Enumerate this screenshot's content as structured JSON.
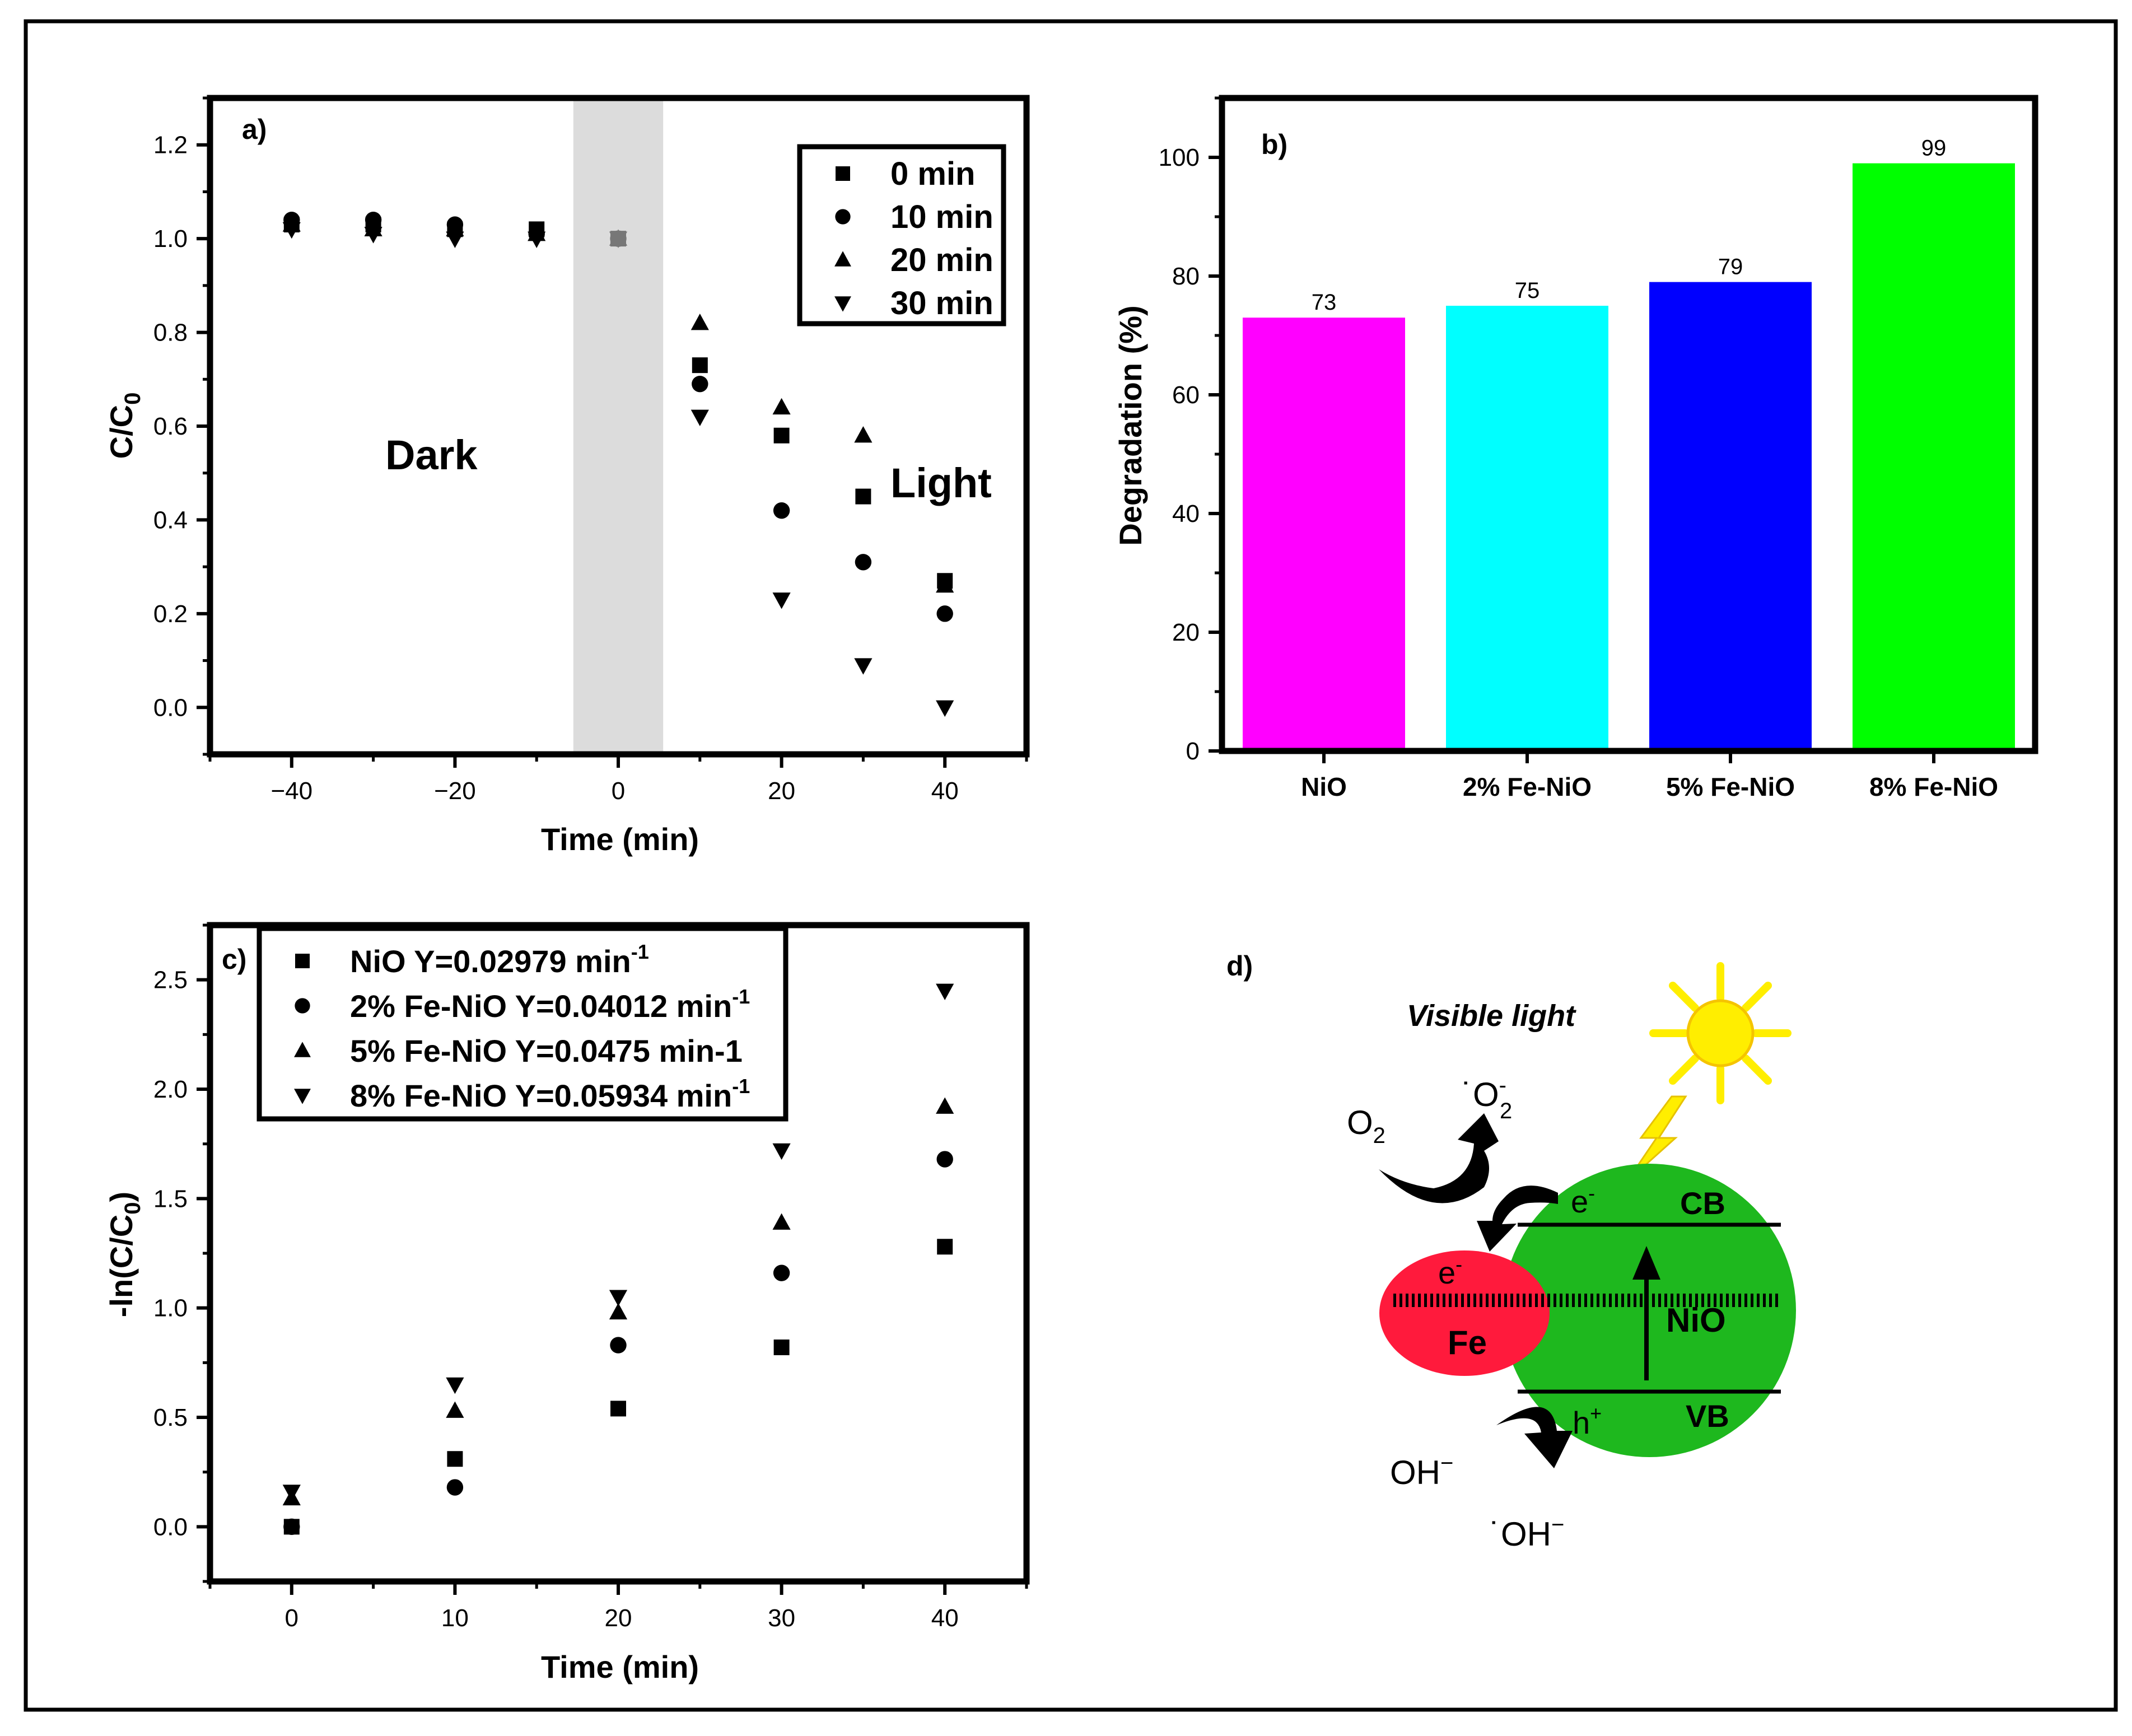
{
  "panel_a": {
    "label": "a)",
    "ylabel_main": "C/C",
    "ylabel_sub": "0",
    "xlabel": "Time (min)",
    "dark_label": "Dark",
    "light_label": "Light"
  },
  "panel_b": {
    "label": "b)",
    "ylabel": "Degradation (%)"
  },
  "panel_c": {
    "label": "c)",
    "ylabel_pre": "-ln(C/C",
    "ylabel_sub": "0",
    "ylabel_post": ")",
    "xlabel": "Time (min)",
    "legend": [
      {
        "text": "NiO Y=0.02979 min",
        "sup": "-1"
      },
      {
        "text": "2% Fe-NiO Y=0.04012 min",
        "sup": "-1"
      },
      {
        "text": "5% Fe-NiO Y=0.0475 min-1",
        "sup": ""
      },
      {
        "text": "8% Fe-NiO Y=0.05934 min",
        "sup": "-1"
      }
    ]
  },
  "panel_d": {
    "label": "d)",
    "visible_light": "Visible light",
    "o2": "O",
    "o2_sub": "2",
    "superoxide_pre": "˙O",
    "superoxide_sup": "-",
    "superoxide_sub": "2",
    "e_top": "e",
    "e_sup": "-",
    "cb": "CB",
    "e_fe": "e",
    "fe": "Fe",
    "nio": "NiO",
    "h": "h",
    "h_sup": "+",
    "vb": "VB",
    "oh": "OH",
    "oh_sup": "−",
    "oh_rad_pre": "˙OH",
    "oh_rad_sup": "−"
  },
  "colors": {
    "nio_bar": "#ff00ff",
    "fe2_bar": "#00ffff",
    "fe5_bar": "#0000ff",
    "fe8_bar": "#00ff00",
    "nio_sphere": "#1eb81e",
    "fe_sphere": "#ff1a3c",
    "sun": "#ffee00",
    "dark_band": "#dcdcdc"
  },
  "chart_data": [
    {
      "type": "scatter",
      "panel": "a",
      "xlabel": "Time (min)",
      "ylabel": "C/C0",
      "xlim": [
        -50,
        50
      ],
      "ylim": [
        -0.1,
        1.3
      ],
      "xticks": [
        -40,
        -20,
        0,
        20,
        40
      ],
      "yticks": [
        0.0,
        0.2,
        0.4,
        0.6,
        0.8,
        1.0,
        1.2
      ],
      "shaded_region": [
        -5.5,
        5.5
      ],
      "x": [
        -40,
        -30,
        -20,
        -10,
        0,
        10,
        20,
        30,
        40
      ],
      "series": [
        {
          "name": "0 min",
          "marker": "square",
          "values": [
            1.03,
            1.03,
            1.02,
            1.02,
            1.0,
            0.73,
            0.58,
            0.45,
            0.27
          ]
        },
        {
          "name": "10 min",
          "marker": "circle",
          "values": [
            1.04,
            1.04,
            1.03,
            1.01,
            1.0,
            0.69,
            0.42,
            0.31,
            0.2
          ]
        },
        {
          "name": "20 min",
          "marker": "triangle-up",
          "values": [
            1.03,
            1.02,
            1.02,
            1.01,
            1.0,
            0.82,
            0.64,
            0.58,
            0.26
          ]
        },
        {
          "name": "30 min",
          "marker": "triangle-down",
          "values": [
            1.02,
            1.01,
            1.0,
            1.0,
            1.0,
            0.62,
            0.23,
            0.09,
            0.0
          ]
        }
      ]
    },
    {
      "type": "bar",
      "panel": "b",
      "ylabel": "Degradation (%)",
      "ylim": [
        0,
        110
      ],
      "yticks": [
        0,
        20,
        40,
        60,
        80,
        100
      ],
      "categories": [
        "NiO",
        "2% Fe-NiO",
        "5% Fe-NiO",
        "8% Fe-NiO"
      ],
      "values": [
        73,
        75,
        79,
        99
      ],
      "data_labels": [
        "73",
        "75",
        "79",
        "99"
      ]
    },
    {
      "type": "scatter",
      "panel": "c",
      "xlabel": "Time (min)",
      "ylabel": "-ln(C/C0)",
      "xlim": [
        -5,
        45
      ],
      "ylim": [
        -0.25,
        2.75
      ],
      "xticks": [
        0,
        10,
        20,
        30,
        40
      ],
      "yticks": [
        0.0,
        0.5,
        1.0,
        1.5,
        2.0,
        2.5
      ],
      "x": [
        0,
        10,
        20,
        30,
        40
      ],
      "series": [
        {
          "name": "NiO",
          "marker": "square",
          "values": [
            0.0,
            0.31,
            0.54,
            0.82,
            1.28
          ]
        },
        {
          "name": "2% Fe-NiO",
          "marker": "circle",
          "values": [
            0.0,
            0.18,
            0.83,
            1.16,
            1.68
          ]
        },
        {
          "name": "5% Fe-NiO",
          "marker": "triangle-up",
          "values": [
            0.13,
            0.53,
            0.98,
            1.39,
            1.92
          ]
        },
        {
          "name": "8% Fe-NiO",
          "marker": "triangle-down",
          "values": [
            0.16,
            0.65,
            1.05,
            1.72,
            2.45
          ]
        }
      ]
    }
  ]
}
